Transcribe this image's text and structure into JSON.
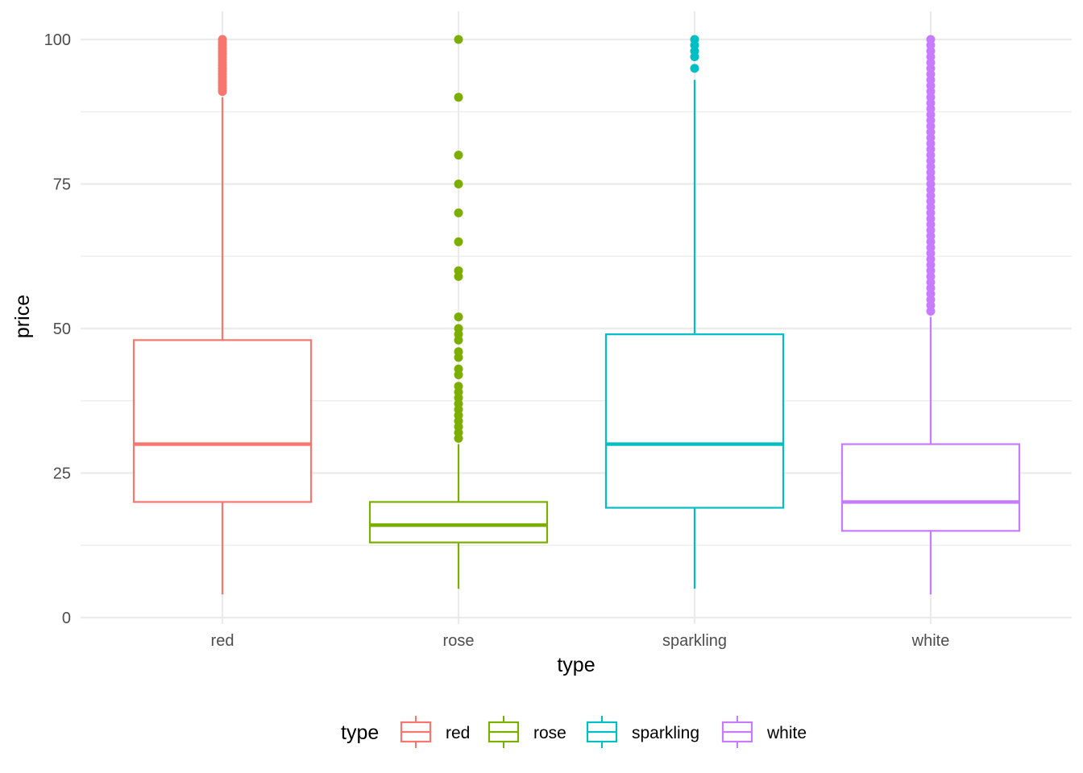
{
  "chart_data": {
    "type": "boxplot",
    "xlabel": "type",
    "ylabel": "price",
    "ylim": [
      0,
      100
    ],
    "y_ticks": [
      0,
      25,
      50,
      75,
      100
    ],
    "y_tick_labels": [
      "0",
      "25",
      "50",
      "75",
      "100"
    ],
    "categories": [
      "red",
      "rose",
      "sparkling",
      "white"
    ],
    "grid": true,
    "legend": {
      "title": "type",
      "position": "bottom"
    },
    "series": [
      {
        "name": "red",
        "color": "#F8766D",
        "whisker_low": 4,
        "q1": 20,
        "median": 30,
        "q3": 48,
        "whisker_high": 90,
        "outliers": [
          91,
          91.5,
          92,
          92.5,
          93,
          93.5,
          94,
          94.5,
          95,
          95.5,
          96,
          96.5,
          97,
          97.5,
          98,
          98.5,
          99,
          99.5,
          100
        ]
      },
      {
        "name": "rose",
        "color": "#7CAE00",
        "whisker_low": 5,
        "q1": 13,
        "median": 16,
        "q3": 20,
        "whisker_high": 30,
        "outliers": [
          31,
          32,
          33,
          34,
          35,
          36,
          37,
          38,
          39,
          40,
          42,
          43,
          45,
          46,
          48,
          49,
          50,
          52,
          59,
          60,
          65,
          70,
          75,
          80,
          90,
          100
        ]
      },
      {
        "name": "sparkling",
        "color": "#00BFC4",
        "whisker_low": 5,
        "q1": 19,
        "median": 30,
        "q3": 49,
        "whisker_high": 93,
        "outliers": [
          95,
          97,
          98,
          99,
          100
        ]
      },
      {
        "name": "white",
        "color": "#C77CFF",
        "whisker_low": 4,
        "q1": 15,
        "median": 20,
        "q3": 30,
        "whisker_high": 52,
        "outliers": [
          53,
          54,
          55,
          56,
          57,
          58,
          59,
          60,
          61,
          62,
          63,
          64,
          65,
          66,
          67,
          68,
          69,
          70,
          71,
          72,
          73,
          74,
          75,
          76,
          77,
          78,
          79,
          80,
          81,
          82,
          83,
          84,
          85,
          86,
          87,
          88,
          89,
          90,
          91,
          92,
          93,
          94,
          95,
          96,
          97,
          98,
          99,
          100
        ]
      }
    ]
  }
}
